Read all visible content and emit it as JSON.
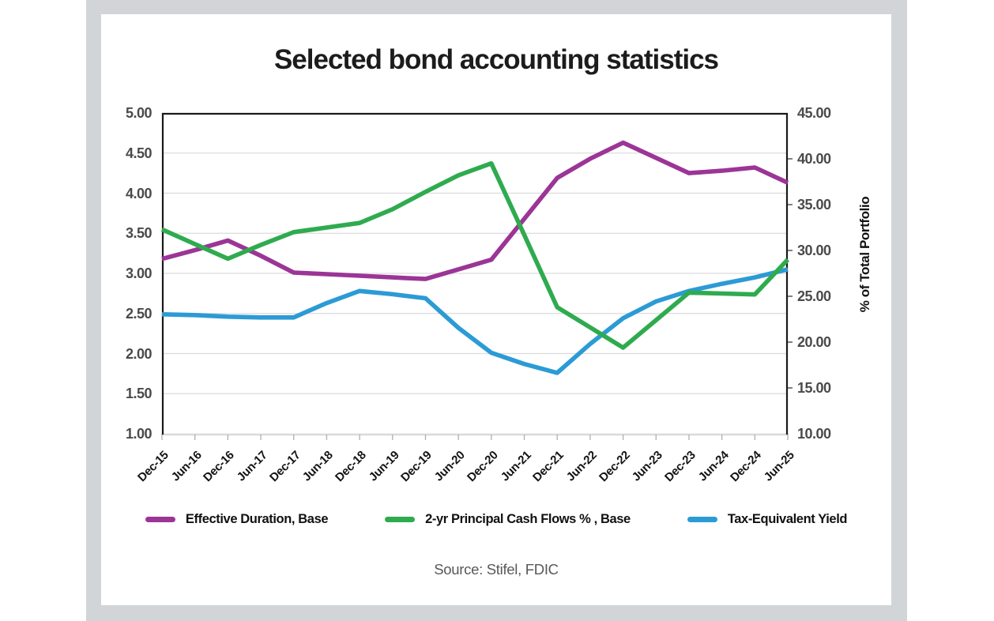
{
  "chart_data": {
    "type": "line",
    "title": "Selected bond accounting statistics",
    "source": "Source: Stifel, FDIC",
    "categories": [
      "Dec-15",
      "Jun-16",
      "Dec-16",
      "Jun-17",
      "Dec-17",
      "Jun-18",
      "Dec-18",
      "Jun-19",
      "Dec-19",
      "Jun-20",
      "Dec-20",
      "Jun-21",
      "Dec-21",
      "Jun-22",
      "Dec-22",
      "Jun-23",
      "Dec-23",
      "Jun-24",
      "Dec-24",
      "Jun-25"
    ],
    "x_label_rotation": -45,
    "grid": true,
    "legend_position": "bottom",
    "left_axis": {
      "min": 1.0,
      "max": 5.0,
      "step": 0.5,
      "labels": [
        "5.00",
        "4.50",
        "4.00",
        "3.50",
        "3.00",
        "2.50",
        "2.00",
        "1.50",
        "1.00"
      ]
    },
    "right_axis": {
      "min": 10.0,
      "max": 45.0,
      "step": 5.0,
      "title": "% of Total Portfolio",
      "labels": [
        "45.00",
        "40.00",
        "35.00",
        "30.00",
        "25.00",
        "20.00",
        "15.00",
        "10.00"
      ]
    },
    "series": [
      {
        "name": "Effective Duration, Base",
        "axis": "left",
        "color": "#9b3596",
        "values": [
          3.18,
          3.29,
          3.41,
          3.22,
          3.01,
          2.99,
          2.97,
          2.95,
          2.93,
          3.05,
          3.17,
          3.68,
          4.19,
          4.43,
          4.63,
          4.44,
          4.25,
          4.28,
          4.32,
          4.13
        ]
      },
      {
        "name": "2-yr Principal Cash Flows % , Base",
        "axis": "right",
        "color": "#2fab4f",
        "values": [
          32.3,
          30.7,
          29.1,
          30.6,
          32.0,
          32.5,
          33.0,
          34.5,
          36.4,
          38.2,
          39.5,
          31.7,
          23.8,
          21.6,
          19.4,
          22.4,
          25.4,
          25.3,
          25.2,
          29.0
        ]
      },
      {
        "name": "Tax-Equivalent Yield",
        "axis": "left",
        "color": "#2c9bd5",
        "values": [
          2.49,
          2.48,
          2.46,
          2.45,
          2.45,
          2.63,
          2.78,
          2.74,
          2.69,
          2.32,
          2.01,
          1.87,
          1.76,
          2.12,
          2.44,
          2.65,
          2.78,
          2.87,
          2.95,
          3.05
        ]
      }
    ],
    "colors": {
      "plot_border": "#1a1a1a",
      "gridline": "#dcdcdc",
      "bottom_axis": "#d9d9d9",
      "tick": "#b0b0b0",
      "right_tick": "#4d4d4d",
      "slide_background": "#d2d5d8",
      "card_background": "#ffffff"
    }
  }
}
